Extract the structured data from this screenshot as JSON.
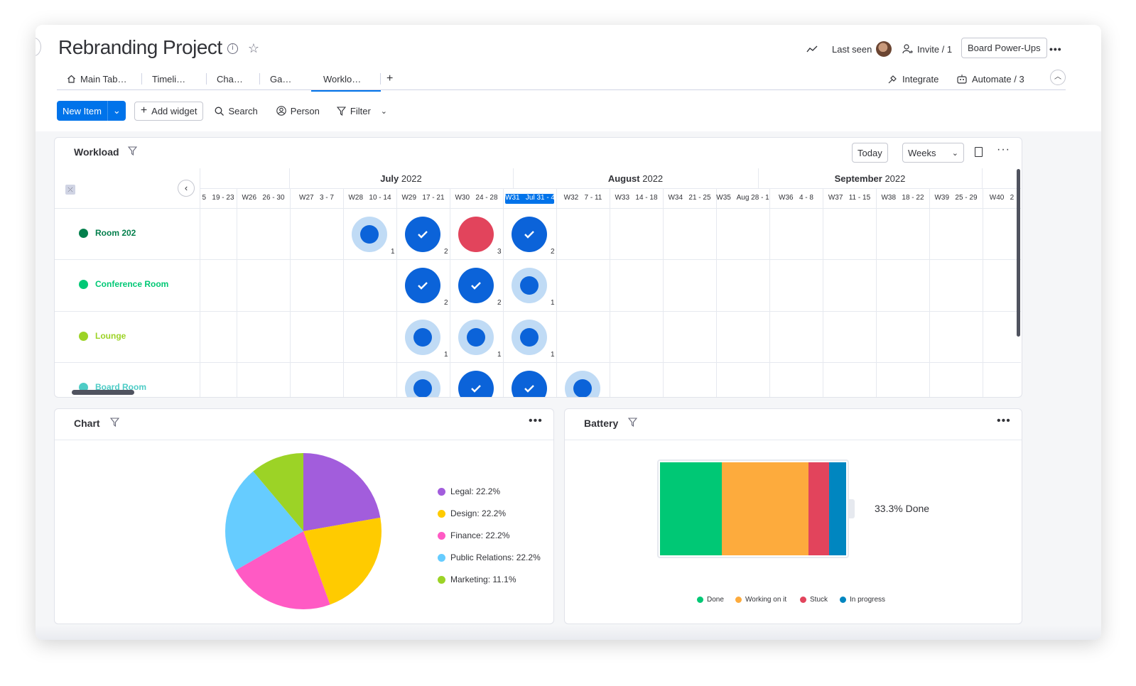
{
  "header": {
    "title": "Rebranding Project",
    "info_icon": "info-icon",
    "star_icon": "star-icon",
    "activity_icon": "activity-icon",
    "last_seen_label": "Last seen",
    "invite_label": "Invite / 1",
    "power_ups_label": "Board Power-Ups",
    "more_label": "•••"
  },
  "tabs": [
    {
      "label": "Main Tab…",
      "icon": "home-icon"
    },
    {
      "label": "Timeli…"
    },
    {
      "label": "Cha…"
    },
    {
      "label": "Ga…"
    },
    {
      "label": "Worklo…",
      "active": true
    }
  ],
  "tabs_add": "+",
  "integrate_label": "Integrate",
  "automate_label": "Automate / 3",
  "toolbar": {
    "new_item": "New Item",
    "add_widget": "Add widget",
    "search": "Search",
    "person": "Person",
    "filter": "Filter"
  },
  "workload": {
    "title": "Workload",
    "today_label": "Today",
    "weeks_label": "Weeks",
    "months": [
      {
        "name": "July",
        "year": "2022"
      },
      {
        "name": "August",
        "year": "2022"
      },
      {
        "name": "September",
        "year": "2022"
      }
    ],
    "weeks": [
      "5   19 - 23",
      "W26   26 - 30",
      "W27   3 - 7",
      "W28   10 - 14",
      "W29   17 - 21",
      "W30   24 - 28",
      "W31   Jul 31 - 4",
      "W32   7 - 11",
      "W33   14 - 18",
      "W34   21 - 25",
      "W35   Aug 28 - 1",
      "W36   4 - 8",
      "W37   11 - 15",
      "W38   18 - 22",
      "W39   25 - 29",
      "W40   2"
    ],
    "rooms": [
      {
        "name": "Room 202",
        "color": "#037f4c"
      },
      {
        "name": "Conference Room",
        "color": "#00c875"
      },
      {
        "name": "Lounge",
        "color": "#9cd326"
      },
      {
        "name": "Board Room",
        "color": "#4eccc6"
      }
    ],
    "cells": [
      {
        "room": 0,
        "week": 3,
        "style": "light",
        "count": "1"
      },
      {
        "room": 0,
        "week": 4,
        "style": "full",
        "count": "2"
      },
      {
        "room": 0,
        "week": 5,
        "style": "stuck",
        "count": "3"
      },
      {
        "room": 0,
        "week": 6,
        "style": "full",
        "count": "2"
      },
      {
        "room": 1,
        "week": 4,
        "style": "full",
        "count": "2"
      },
      {
        "room": 1,
        "week": 5,
        "style": "full",
        "count": "2"
      },
      {
        "room": 1,
        "week": 6,
        "style": "light",
        "count": "1"
      },
      {
        "room": 2,
        "week": 4,
        "style": "light",
        "count": "1"
      },
      {
        "room": 2,
        "week": 5,
        "style": "light",
        "count": "1"
      },
      {
        "room": 2,
        "week": 6,
        "style": "light",
        "count": "1"
      },
      {
        "room": 3,
        "week": 4,
        "style": "light",
        "count": ""
      },
      {
        "room": 3,
        "week": 5,
        "style": "full",
        "count": ""
      },
      {
        "room": 3,
        "week": 6,
        "style": "full",
        "count": ""
      },
      {
        "room": 3,
        "week": 7,
        "style": "light",
        "count": ""
      }
    ]
  },
  "chart_widget": {
    "title": "Chart",
    "dots": "•••"
  },
  "chart_data": {
    "type": "pie",
    "slices": [
      {
        "label": "Legal: 22.2%",
        "name": "Legal",
        "value": 22.2,
        "color": "#a25ddc"
      },
      {
        "label": "Design: 22.2%",
        "name": "Design",
        "value": 22.2,
        "color": "#ffcb00"
      },
      {
        "label": "Finance: 22.2%",
        "name": "Finance",
        "value": 22.2,
        "color": "#ff5ac4"
      },
      {
        "label": "Public Relations: 22.2%",
        "name": "Public Relations",
        "value": 22.2,
        "color": "#66ccff"
      },
      {
        "label": "Marketing: 11.1%",
        "name": "Marketing",
        "value": 11.1,
        "color": "#9cd326"
      }
    ]
  },
  "battery": {
    "title": "Battery",
    "dots": "•••",
    "summary": "33.3% Done",
    "segments": [
      {
        "name": "Done",
        "fraction": 0.333,
        "color": "#00c875"
      },
      {
        "name": "Working on it",
        "fraction": 0.463,
        "color": "#fdab3d"
      },
      {
        "name": "Stuck",
        "fraction": 0.111,
        "color": "#e2445c"
      },
      {
        "name": "In progress",
        "fraction": 0.093,
        "color": "#0086c0"
      }
    ]
  }
}
